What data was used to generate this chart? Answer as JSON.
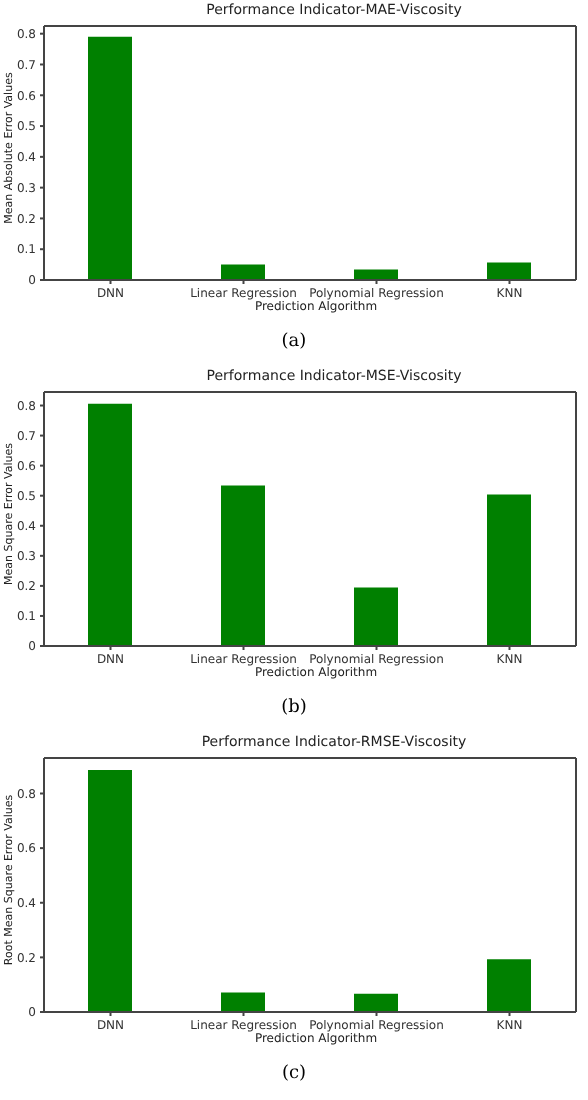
{
  "chart_data": [
    {
      "type": "bar",
      "title": "Performance Indicator-MAE-Viscosity",
      "xlabel": "Prediction Algorithm",
      "ylabel": "Mean Absolute Error Values",
      "categories": [
        "DNN",
        "Linear Regression",
        "Polynomial Regression",
        "KNN"
      ],
      "values": [
        0.79,
        0.05,
        0.034,
        0.057
      ],
      "color": "#008000",
      "ylim": [
        0,
        0.825
      ],
      "yticks": [
        0,
        0.1,
        0.2,
        0.3,
        0.4,
        0.5,
        0.6,
        0.7,
        0.8
      ],
      "annotations": [
        "(a)"
      ]
    },
    {
      "type": "bar",
      "title": "Performance Indicator-MSE-Viscosity",
      "xlabel": "Prediction Algorithm",
      "ylabel": "Mean Square Error Values",
      "categories": [
        "DNN",
        "Linear Regression",
        "Polynomial Regression",
        "KNN"
      ],
      "values": [
        0.806,
        0.534,
        0.195,
        0.504
      ],
      "color": "#008000",
      "ylim": [
        0,
        0.845
      ],
      "yticks": [
        0,
        0.1,
        0.2,
        0.3,
        0.4,
        0.5,
        0.6,
        0.7,
        0.8
      ],
      "annotations": [
        "(b)"
      ]
    },
    {
      "type": "bar",
      "title": "Performance Indicator-RMSE-Viscosity",
      "xlabel": "Prediction Algorithm",
      "ylabel": "Root Mean Square Error Values",
      "categories": [
        "DNN",
        "Linear Regression",
        "Polynomial Regression",
        "KNN"
      ],
      "values": [
        0.886,
        0.071,
        0.067,
        0.193
      ],
      "color": "#008000",
      "ylim": [
        0,
        0.93
      ],
      "yticks": [
        0,
        0.2,
        0.4,
        0.6,
        0.8
      ],
      "annotations": [
        "(c)"
      ]
    }
  ]
}
